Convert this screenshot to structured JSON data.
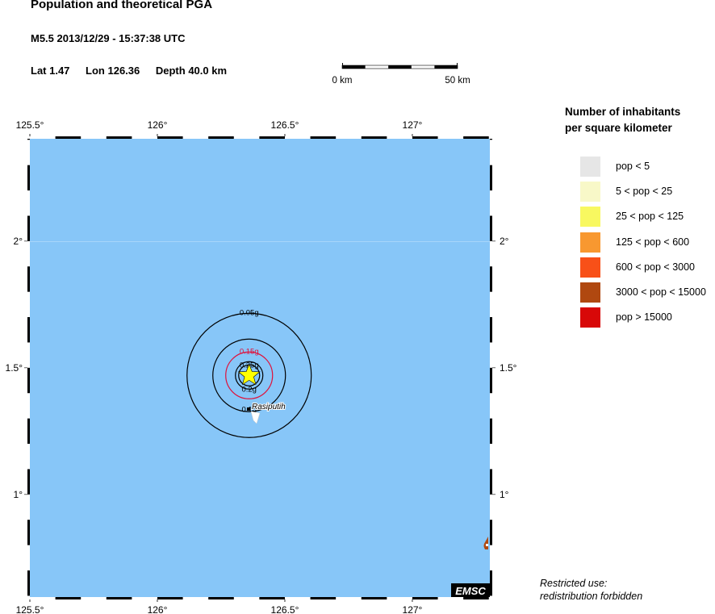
{
  "header": {
    "title": "Population and theoretical PGA",
    "event": "M5.5  2013/12/29 - 15:37:38 UTC",
    "lat": "Lat  1.47",
    "lon": "Lon 126.36",
    "depth": "Depth  40.0 km"
  },
  "scale_bar": {
    "start_label": "0 km",
    "end_label": "50 km"
  },
  "map": {
    "lon_range": [
      125.5,
      127.304
    ],
    "lat_range": [
      0.595,
      2.404
    ],
    "lon_ticks": [
      {
        "v": 125.5,
        "label": "125.5°"
      },
      {
        "v": 126,
        "label": "126°"
      },
      {
        "v": 126.5,
        "label": "126.5°"
      },
      {
        "v": 127,
        "label": "127°"
      }
    ],
    "lat_ticks": [
      {
        "v": 2,
        "label": "2°"
      },
      {
        "v": 1.5,
        "label": "1.5°"
      },
      {
        "v": 1,
        "label": "1°"
      }
    ],
    "sea_color": "#87c6f8",
    "epicenter": {
      "lon": 126.36,
      "lat": 1.47,
      "icon": "star-icon",
      "color": "#ffff00"
    },
    "contours": [
      {
        "label": "0.05g",
        "color": "#000000"
      },
      {
        "label": "0.1g",
        "color": "#000000"
      },
      {
        "label": "0.15g",
        "color": "#e0103a"
      },
      {
        "label": "0.2g",
        "color": "#000000"
      },
      {
        "label": "0.25g",
        "color": "#000000"
      }
    ],
    "place": {
      "name": "Rasiputih"
    },
    "logo": "EMSC"
  },
  "legend": {
    "title_line1": "Number of inhabitants",
    "title_line2": "per square kilometer",
    "items": [
      {
        "label": "pop < 5",
        "color": "#e6e6e6"
      },
      {
        "label": "5 < pop < 25",
        "color": "#f8f8c8"
      },
      {
        "label": "25 < pop < 125",
        "color": "#f8f860"
      },
      {
        "label": "125 < pop < 600",
        "color": "#f89830"
      },
      {
        "label": "600 < pop < 3000",
        "color": "#f85018"
      },
      {
        "label": "3000 < pop < 15000",
        "color": "#b04810"
      },
      {
        "label": "pop > 15000",
        "color": "#d80808"
      }
    ]
  },
  "notice": {
    "line1": "Restricted use:",
    "line2": "redistribution forbidden"
  }
}
